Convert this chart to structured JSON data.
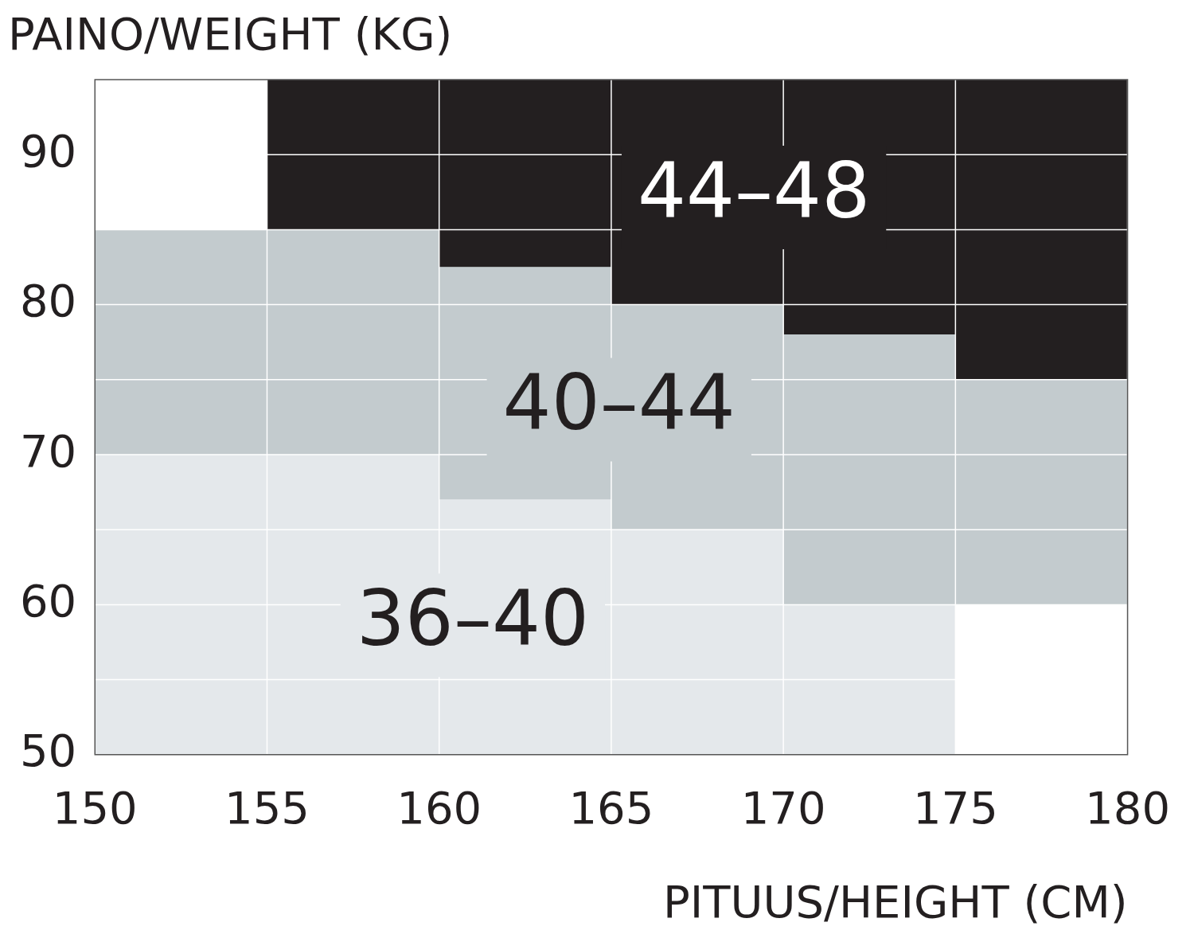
{
  "chart_data": {
    "type": "bar",
    "xlabel": "PITUUS/HEIGHT (CM)",
    "ylabel": "PAINO/WEIGHT (KG)",
    "x": [
      152.5,
      157.5,
      162.5,
      167.5,
      172.5,
      177.5
    ],
    "xlim": [
      150,
      180
    ],
    "xticks": [
      150,
      155,
      160,
      165,
      170,
      175,
      180
    ],
    "ylim": [
      50,
      95
    ],
    "yticks": [
      50,
      {
        "value": 55,
        "label": null
      },
      60,
      {
        "value": 65,
        "label": null
      },
      70,
      {
        "value": 75,
        "label": null
      },
      80,
      {
        "value": 85,
        "label": null
      },
      90
    ],
    "grid": true,
    "legend": false,
    "series": [
      {
        "name": "36–40",
        "color": "#e4e8eb",
        "base": [
          50,
          50,
          50,
          50,
          50,
          null
        ],
        "values": [
          20,
          20,
          17,
          15,
          10,
          null
        ]
      },
      {
        "name": "40–44",
        "color": "#c3cbce",
        "base": [
          70,
          70,
          67,
          65,
          60,
          60
        ],
        "values": [
          15,
          15,
          15.5,
          15,
          18,
          15
        ]
      },
      {
        "name": "44–48",
        "color": "#231f20",
        "base": [
          null,
          85,
          82.5,
          80,
          78,
          75
        ],
        "values": [
          null,
          10,
          12.5,
          15,
          17,
          20
        ]
      }
    ]
  }
}
